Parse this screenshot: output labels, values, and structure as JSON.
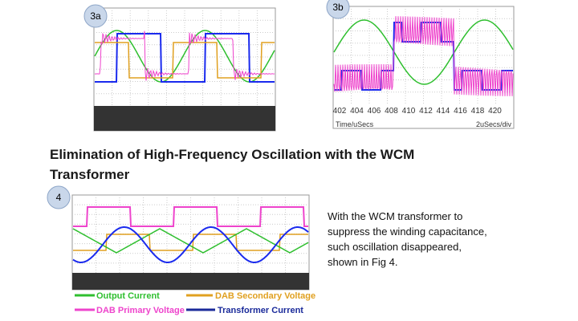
{
  "figures": [
    {
      "label": "3a"
    },
    {
      "label": "3b",
      "x_tick_labels": [
        "402",
        "404",
        "406",
        "408",
        "410",
        "412",
        "414",
        "416",
        "418",
        "420"
      ],
      "x_axis_label": "Time/uSecs",
      "scale_label": "2uSecs/div"
    },
    {
      "label": "4",
      "legend": [
        "Output Current",
        "DAB Secondary Voltage",
        "DAB Primary Voltage",
        "Transformer Current"
      ]
    }
  ],
  "heading": "Elimination of High-Frequency Oscillation with the WCM Transformer",
  "paragraph": [
    "With the WCM transformer to",
    "suppress the winding capacitance,",
    "such oscillation disappeared,",
    "shown in Fig 4."
  ]
}
